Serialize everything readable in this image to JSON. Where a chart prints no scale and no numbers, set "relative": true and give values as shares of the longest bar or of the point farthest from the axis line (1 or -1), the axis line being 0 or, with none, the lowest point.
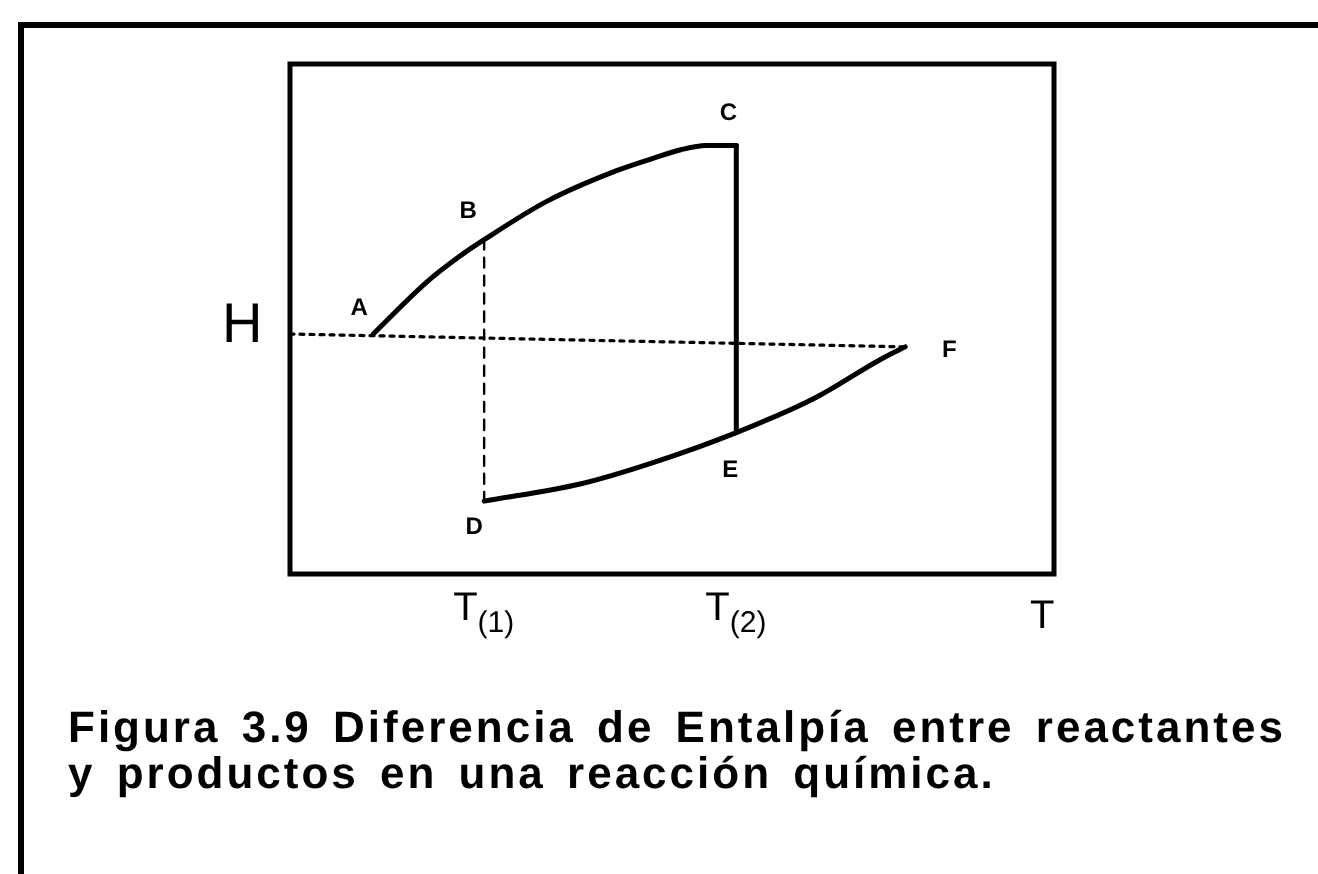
{
  "chart_data": {
    "type": "line",
    "relative": true,
    "xlabel": "T",
    "ylabel": "H",
    "xlim": [
      0.23,
      3.26
    ],
    "xticks": [
      {
        "value": 1,
        "label": "T$_{(1)}$"
      },
      {
        "value": 2,
        "label": "T$_{(2)}$"
      }
    ],
    "marker": "none",
    "series": [
      {
        "color": "#000000",
        "x": [
          0.56,
          0.77,
          0.9,
          1.0,
          1.25,
          1.52,
          1.67,
          1.78,
          1.88,
          2.0
        ],
        "values": [
          0.56,
          0.68,
          0.74,
          0.78,
          0.87,
          0.94,
          0.97,
          0.99,
          1.0,
          1.0
        ]
      },
      {
        "color": "#000000",
        "x": [
          2.0,
          2.0
        ],
        "values": [
          1.0,
          0.33
        ]
      },
      {
        "color": "#000000",
        "x": [
          1.0,
          1.38,
          1.67,
          2.0,
          2.31,
          2.57,
          2.67
        ],
        "values": [
          0.17,
          0.21,
          0.26,
          0.33,
          0.41,
          0.5,
          0.53
        ]
      },
      {
        "color": "#000000",
        "line_style": "dotted",
        "x": [
          0.23,
          2.67
        ],
        "values": [
          0.56,
          0.53
        ]
      },
      {
        "color": "#000000",
        "line_style": "dashed",
        "x": [
          1.0,
          1.0
        ],
        "values": [
          0.78,
          0.17
        ]
      }
    ],
    "annotations": [
      {
        "text": "A",
        "x": 0.56,
        "y": 0.56
      },
      {
        "text": "B",
        "x": 1.0,
        "y": 0.78
      },
      {
        "text": "C",
        "x": 2.0,
        "y": 1.0
      },
      {
        "text": "D",
        "x": 1.0,
        "y": 0.17
      },
      {
        "text": "E",
        "x": 2.0,
        "y": 0.33
      },
      {
        "text": "F",
        "x": 2.67,
        "y": 0.53
      },
      "Figura 3.9 Diferencia de Entalpía entre reactantes\ny productos en una reacción química."
    ]
  }
}
